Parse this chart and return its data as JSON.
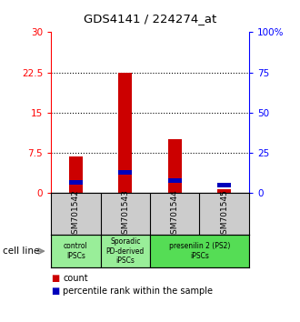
{
  "title": "GDS4141 / 224274_at",
  "samples": [
    "GSM701542",
    "GSM701543",
    "GSM701544",
    "GSM701545"
  ],
  "count_values": [
    6.8,
    22.5,
    10.0,
    0.7
  ],
  "percentile_values": [
    6.6,
    12.8,
    7.8,
    5.0
  ],
  "groups": [
    {
      "label": "control\nIPSCs",
      "start": 0,
      "end": 1,
      "color": "#99ee99"
    },
    {
      "label": "Sporadic\nPD-derived\niPSCs",
      "start": 1,
      "end": 2,
      "color": "#99ee99"
    },
    {
      "label": "presenilin 2 (PS2)\niPSCs",
      "start": 2,
      "end": 4,
      "color": "#55dd55"
    }
  ],
  "ylim_left": [
    0,
    30
  ],
  "ylim_right": [
    0,
    100
  ],
  "yticks_left": [
    0,
    7.5,
    15,
    22.5,
    30
  ],
  "ytick_labels_left": [
    "0",
    "7.5",
    "15",
    "22.5",
    "30"
  ],
  "yticks_right": [
    0,
    25,
    50,
    75,
    100
  ],
  "ytick_labels_right": [
    "0",
    "25",
    "50",
    "75",
    "100%"
  ],
  "bar_color_red": "#cc0000",
  "bar_color_blue": "#0000bb",
  "bg_plot": "#ffffff",
  "bg_label_row": "#cccccc",
  "bar_width": 0.28,
  "blue_bar_height": 0.9
}
